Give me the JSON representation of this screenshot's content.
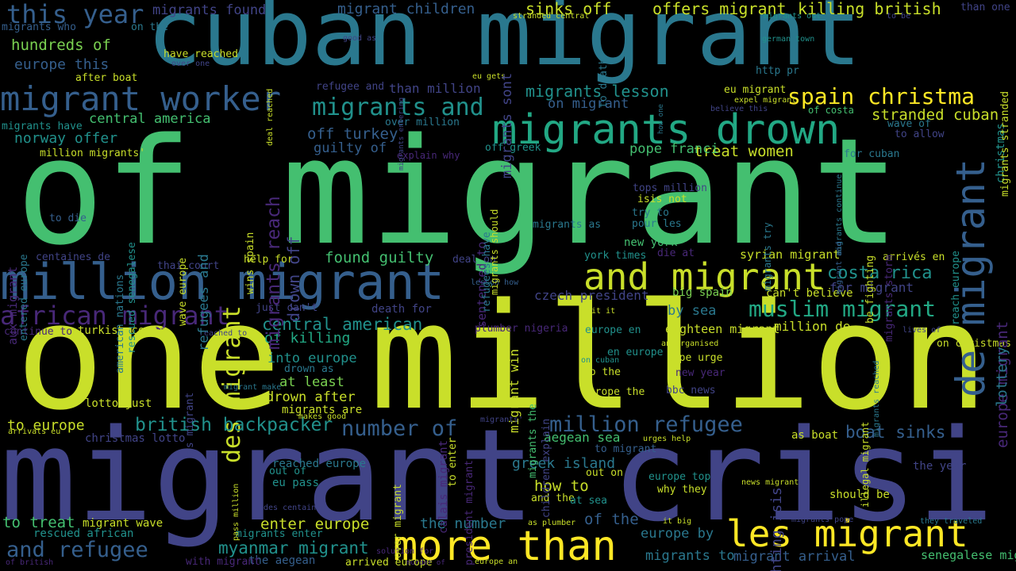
{
  "palette": {
    "c1": "#c9df2a",
    "c2": "#7ad151",
    "c3": "#44bf70",
    "c4": "#22a884",
    "c5": "#21918c",
    "c6": "#2a788e",
    "c7": "#355f8d",
    "c8": "#414487",
    "c9": "#482878",
    "c10": "#440154",
    "c11": "#fde725"
  },
  "words": [
    {
      "t": "of migrant",
      "c": "c3"
    },
    {
      "t": "one million",
      "c": "c1"
    },
    {
      "t": "migrant crisi",
      "c": "c8"
    },
    {
      "t": "cuban migrant",
      "c": "c6"
    },
    {
      "t": "million migrant",
      "c": "c7"
    },
    {
      "t": "migrants drown",
      "c": "c4"
    },
    {
      "t": "migrant worker",
      "c": "c7"
    },
    {
      "t": "and migrant",
      "c": "c1"
    },
    {
      "t": "les migrant",
      "c": "c11"
    },
    {
      "t": "more than",
      "c": "c11"
    },
    {
      "t": "african migrant",
      "c": "c9"
    },
    {
      "t": "de migrant",
      "c": "c7"
    },
    {
      "t": "spain christma",
      "c": "c11"
    },
    {
      "t": "this year",
      "c": "c7"
    },
    {
      "t": "migrants and",
      "c": "c5"
    },
    {
      "t": "muslim migrant",
      "c": "c4"
    },
    {
      "t": "million refugee",
      "c": "c7"
    },
    {
      "t": "and refugee",
      "c": "c7"
    },
    {
      "t": "des migrant",
      "c": "c1"
    },
    {
      "t": "british backpacker",
      "c": "c5"
    },
    {
      "t": "number of",
      "c": "c7"
    },
    {
      "t": "central american",
      "c": "c5"
    },
    {
      "t": "myanmar migrant",
      "c": "c5"
    },
    {
      "t": "costa rica",
      "c": "c5"
    },
    {
      "t": "boat sinks",
      "c": "c7"
    },
    {
      "t": "enter europe",
      "c": "c1"
    },
    {
      "t": "killing british",
      "c": "c1"
    },
    {
      "t": "offers migrant",
      "c": "c1"
    },
    {
      "t": "sinks off",
      "c": "c1"
    },
    {
      "t": "stranded cuban",
      "c": "c1"
    },
    {
      "t": "treat women",
      "c": "c1"
    },
    {
      "t": "migrants lesson",
      "c": "c5"
    },
    {
      "t": "migrant children",
      "c": "c7"
    },
    {
      "t": "migrants found",
      "c": "c8"
    },
    {
      "t": "hundreds of",
      "c": "c2"
    },
    {
      "t": "europe this",
      "c": "c7"
    },
    {
      "t": "central america",
      "c": "c3"
    },
    {
      "t": "norway offer",
      "c": "c5"
    },
    {
      "t": "off turkey",
      "c": "c7"
    },
    {
      "t": "guilty of",
      "c": "c7"
    },
    {
      "t": "found guilty",
      "c": "c3"
    },
    {
      "t": "of killing",
      "c": "c4"
    },
    {
      "t": "into europe",
      "c": "c5"
    },
    {
      "t": "at least",
      "c": "c2"
    },
    {
      "t": "drown after",
      "c": "c1"
    },
    {
      "t": "to europe",
      "c": "c1"
    },
    {
      "t": "to treat",
      "c": "c3"
    },
    {
      "t": "the number",
      "c": "c6"
    },
    {
      "t": "of the",
      "c": "c7"
    },
    {
      "t": "how to",
      "c": "c1"
    },
    {
      "t": "greek island",
      "c": "c6"
    },
    {
      "t": "aegean sea",
      "c": "c3"
    },
    {
      "t": "europe by",
      "c": "c6"
    },
    {
      "t": "migrants to",
      "c": "c6"
    },
    {
      "t": "migrant arrival",
      "c": "c7"
    },
    {
      "t": "pope franci",
      "c": "c3"
    },
    {
      "t": "eighteen migrant",
      "c": "c1"
    },
    {
      "t": "by sea",
      "c": "c6"
    },
    {
      "t": "million de",
      "c": "c1"
    },
    {
      "t": "czech president",
      "c": "c8"
    },
    {
      "t": "syrian migrant",
      "c": "c1"
    },
    {
      "t": "big spain",
      "c": "c2"
    },
    {
      "t": "can't believe",
      "c": "c1"
    },
    {
      "t": "for migrant",
      "c": "c8"
    },
    {
      "t": "arrivés en",
      "c": "c1"
    },
    {
      "t": "on christmas",
      "c": "c1"
    },
    {
      "t": "the year",
      "c": "c8"
    },
    {
      "t": "senegalese migrant",
      "c": "c3"
    },
    {
      "t": "should be",
      "c": "c1"
    },
    {
      "t": "as boat",
      "c": "c1"
    },
    {
      "t": "on migrant",
      "c": "c7"
    },
    {
      "t": "than million",
      "c": "c8"
    },
    {
      "t": "over million",
      "c": "c6"
    },
    {
      "t": "migrant wave",
      "c": "c1"
    },
    {
      "t": "migrants enter",
      "c": "c5"
    },
    {
      "t": "eu pass",
      "c": "c5"
    },
    {
      "t": "out of",
      "c": "c5"
    },
    {
      "t": "reached europe",
      "c": "c6"
    },
    {
      "t": "the aegean",
      "c": "c7"
    },
    {
      "t": "rescued african",
      "c": "c5"
    },
    {
      "t": "christmas lotto",
      "c": "c8"
    },
    {
      "t": "lotto just",
      "c": "c1"
    },
    {
      "t": "turkish coast",
      "c": "c1"
    },
    {
      "t": "just can't",
      "c": "c8"
    },
    {
      "t": "death for",
      "c": "c8"
    },
    {
      "t": "drown as",
      "c": "c6"
    },
    {
      "t": "migrants are",
      "c": "c1"
    },
    {
      "t": "thai court",
      "c": "c8"
    },
    {
      "t": "help for",
      "c": "c1"
    },
    {
      "t": "deal on",
      "c": "c8"
    },
    {
      "t": "york times",
      "c": "c5"
    },
    {
      "t": "die at",
      "c": "c9"
    },
    {
      "t": "new york",
      "c": "c3"
    },
    {
      "t": "migrants as",
      "c": "c6"
    },
    {
      "t": "tops million",
      "c": "c8"
    },
    {
      "t": "isis not",
      "c": "c1"
    },
    {
      "t": "try to",
      "c": "c6"
    },
    {
      "t": "pour les",
      "c": "c6"
    },
    {
      "t": "for cuban",
      "c": "c6"
    },
    {
      "t": "explain why",
      "c": "c9"
    },
    {
      "t": "off greek",
      "c": "c5"
    },
    {
      "t": "refugee and",
      "c": "c8"
    },
    {
      "t": "after boat",
      "c": "c1"
    },
    {
      "t": "migrants who",
      "c": "c7"
    },
    {
      "t": "on the",
      "c": "c6"
    },
    {
      "t": "million migrants'",
      "c": "c1"
    },
    {
      "t": "migrants have",
      "c": "c5"
    },
    {
      "t": "eu migrant",
      "c": "c1"
    },
    {
      "t": "http pr",
      "c": "c6"
    },
    {
      "t": "than one",
      "c": "c8"
    },
    {
      "t": "to allow",
      "c": "c8"
    },
    {
      "t": "wave of",
      "c": "c6"
    },
    {
      "t": "to die",
      "c": "c7"
    },
    {
      "t": "centaines de",
      "c": "c8"
    },
    {
      "t": "continue to",
      "c": "c9"
    },
    {
      "t": "arrivals eu",
      "c": "c1"
    },
    {
      "t": "des centaines",
      "c": "c8"
    },
    {
      "t": "with migrant",
      "c": "c9"
    },
    {
      "t": "of british",
      "c": "c9"
    },
    {
      "t": "plumber nigeria",
      "c": "c9"
    },
    {
      "t": "europe en",
      "c": "c5"
    },
    {
      "t": "en europe",
      "c": "c5"
    },
    {
      "t": "to the",
      "c": "c1"
    },
    {
      "t": "europe the",
      "c": "c1"
    },
    {
      "t": "bbc news",
      "c": "c8"
    },
    {
      "t": "pope urge",
      "c": "c1"
    },
    {
      "t": "new year",
      "c": "c9"
    },
    {
      "t": "to migrant",
      "c": "c7"
    },
    {
      "t": "out on",
      "c": "c1"
    },
    {
      "t": "and the",
      "c": "c1"
    },
    {
      "t": "at sea",
      "c": "c5"
    },
    {
      "t": "europe top",
      "c": "c5"
    },
    {
      "t": "why they",
      "c": "c1"
    },
    {
      "t": "europe an",
      "c": "c1"
    },
    {
      "t": "arrived europe",
      "c": "c1"
    },
    {
      "t": "murder of",
      "c": "c9"
    },
    {
      "t": "have reached",
      "c": "c1"
    },
    {
      "t": "over one",
      "c": "c8"
    },
    {
      "t": "good as",
      "c": "c8"
    },
    {
      "t": "eu gets",
      "c": "c1"
    },
    {
      "t": "expel migrant",
      "c": "c1"
    },
    {
      "t": "german town",
      "c": "c5"
    },
    {
      "t": "migrants out",
      "c": "c5"
    },
    {
      "t": "to be",
      "c": "c8"
    },
    {
      "t": "stranded central",
      "c": "c1"
    },
    {
      "t": "believe this",
      "c": "c8"
    },
    {
      "t": "of costa",
      "c": "c3"
    },
    {
      "t": "sentenced to",
      "c": "c9"
    },
    {
      "t": "migrant win",
      "c": "c1"
    },
    {
      "t": "lesson how",
      "c": "c7"
    },
    {
      "t": "hit it",
      "c": "c1"
    },
    {
      "t": "on cuban",
      "c": "c5"
    },
    {
      "t": "an organised",
      "c": "c1"
    },
    {
      "t": "urges help",
      "c": "c1"
    },
    {
      "t": "news migrant",
      "c": "c1"
    },
    {
      "t": "it big",
      "c": "c1"
    },
    {
      "t": "migrants pope",
      "c": "c8"
    },
    {
      "t": "they traveled",
      "c": "c6"
    },
    {
      "t": "as plumber",
      "c": "c1"
    },
    {
      "t": "solution for",
      "c": "c9"
    },
    {
      "t": "migrants'",
      "c": "c8"
    },
    {
      "t": "migrant make",
      "c": "c6"
    },
    {
      "t": "reached to",
      "c": "c8"
    },
    {
      "t": "makes good",
      "c": "c1"
    },
    {
      "t": "lives of",
      "c": "c8"
    },
    {
      "t": "europe migrant",
      "c": "c9"
    },
    {
      "t": "lottery",
      "c": "c6"
    },
    {
      "t": "christmas",
      "c": "c5"
    },
    {
      "t": "migrants stranded",
      "c": "c1"
    },
    {
      "t": "reach europe",
      "c": "c5"
    },
    {
      "t": "migrants continue",
      "c": "c6"
    },
    {
      "t": "migrant and",
      "c": "c7"
    },
    {
      "t": "migrants storm",
      "c": "c9"
    },
    {
      "t": "be fighting",
      "c": "c1"
    },
    {
      "t": "migrants try",
      "c": "c6"
    },
    {
      "t": "fighting isis",
      "c": "c8"
    },
    {
      "t": "illegal migrant",
      "c": "c1"
    },
    {
      "t": "migrants reached",
      "c": "c6"
    },
    {
      "t": "migrants reach",
      "c": "c9"
    },
    {
      "t": "drown off",
      "c": "c8"
    },
    {
      "t": "refugees and",
      "c": "c6"
    },
    {
      "t": "wins spain",
      "c": "c1"
    },
    {
      "t": "migrants should",
      "c": "c1"
    },
    {
      "t": "refugees have",
      "c": "c6"
    },
    {
      "t": "migrants sont",
      "c": "c8"
    },
    {
      "t": "to death",
      "c": "c6"
    },
    {
      "t": "how one",
      "c": "c6"
    },
    {
      "t": "migrants entering",
      "c": "c8"
    },
    {
      "t": "deal reached",
      "c": "c1"
    },
    {
      "t": "aux migrant",
      "c": "c9"
    },
    {
      "t": "entered europe",
      "c": "c6"
    },
    {
      "t": "american nations",
      "c": "c6"
    },
    {
      "t": "rescued senegalese",
      "c": "c5"
    },
    {
      "t": "wave europe",
      "c": "c1"
    },
    {
      "t": "as migrant",
      "c": "c8"
    },
    {
      "t": "over migrant",
      "c": "c1"
    },
    {
      "t": "calais migrant",
      "c": "c9"
    },
    {
      "t": "to enter",
      "c": "c1"
    },
    {
      "t": "president migrant",
      "c": "c9"
    },
    {
      "t": "migrants the",
      "c": "c3"
    },
    {
      "t": "children explain",
      "c": "c8"
    },
    {
      "t": "pass million",
      "c": "c1"
    },
    {
      "t": "calais migrant",
      "c": "c1"
    }
  ]
}
